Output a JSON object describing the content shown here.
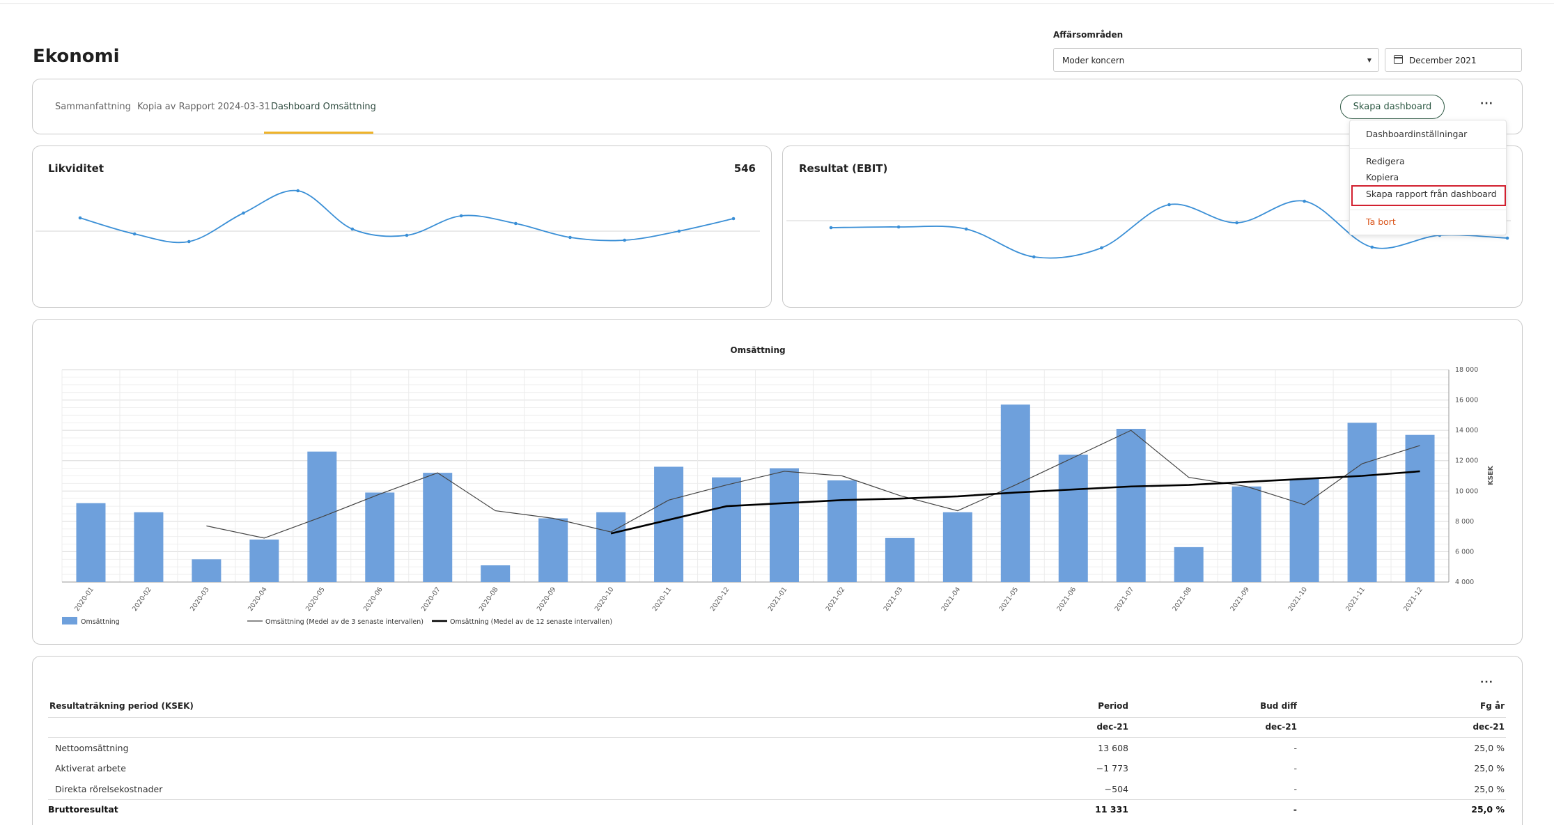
{
  "page": {
    "title": "Ekonomi"
  },
  "filters": {
    "area_label": "Affärsområden",
    "area_value": "Moder koncern",
    "date_value": "December 2021"
  },
  "tabs": [
    {
      "label": "Sammanfattning",
      "active": false
    },
    {
      "label": "Kopia av Rapport 2024-03-31",
      "active": false
    },
    {
      "label": "Dashboard Omsättning",
      "active": true
    }
  ],
  "toolbar": {
    "create_label": "Skapa dashboard",
    "more_label": "···"
  },
  "menu": {
    "items": [
      {
        "label": "Dashboardinställningar"
      },
      {
        "label": "Redigera"
      },
      {
        "label": "Kopiera"
      },
      {
        "label": "Skapa rapport från dashboard"
      },
      {
        "label": "Ta bort"
      }
    ],
    "danger_color": "#d9541a",
    "highlight_color": "#d2202f"
  },
  "kpi_cards": [
    {
      "title": "Likviditet",
      "value": "546"
    },
    {
      "title": "Resultat (EBIT)",
      "value": ""
    }
  ],
  "colors": {
    "accent_underline": "#f0b429",
    "bar": "#6ea0dc",
    "sparkline": "#3a8fd6",
    "brand_green": "#2f5a45"
  },
  "chart_data": [
    {
      "type": "line",
      "title": "Likviditet",
      "values": [
        65,
        42,
        31,
        72,
        104,
        49,
        40,
        68,
        57,
        37,
        33,
        46,
        64
      ],
      "baseline": 55
    },
    {
      "type": "line",
      "title": "Resultat (EBIT)",
      "values": [
        51,
        52,
        49,
        9,
        22,
        84,
        58,
        89,
        23,
        40,
        36
      ],
      "baseline": 50
    },
    {
      "type": "bar",
      "title": "Omsättning",
      "categories": [
        "2020-01",
        "2020-02",
        "2020-03",
        "2020-04",
        "2020-05",
        "2020-06",
        "2020-07",
        "2020-08",
        "2020-09",
        "2020-10",
        "2020-11",
        "2020-12",
        "2021-01",
        "2021-02",
        "2021-03",
        "2021-04",
        "2021-05",
        "2021-06",
        "2021-07",
        "2021-08",
        "2021-09",
        "2021-10",
        "2021-11",
        "2021-12"
      ],
      "ylabel": "KSEK",
      "ylim": [
        4000,
        18000
      ],
      "yticks": [
        "4 000",
        "6 000",
        "8 000",
        "10 000",
        "12 000",
        "14 000",
        "16 000",
        "18 000"
      ],
      "grid": true,
      "legend": "bottom-left",
      "series": [
        {
          "name": "Omsättning",
          "kind": "bar",
          "values": [
            9200,
            8600,
            5500,
            6800,
            12600,
            9900,
            11200,
            5100,
            8200,
            8600,
            11600,
            10900,
            11500,
            10700,
            6900,
            8600,
            15700,
            12400,
            14100,
            6300,
            10300,
            10800,
            14500,
            13700
          ]
        },
        {
          "name": "Omsättning (Medel av de 3 senaste intervallen)",
          "kind": "line",
          "values": [
            null,
            null,
            7700,
            6900,
            8300,
            9800,
            11200,
            8700,
            8200,
            7300,
            9400,
            10400,
            11300,
            11000,
            9700,
            8700,
            10400,
            12200,
            14000,
            10900,
            10300,
            9100,
            11800,
            13000
          ]
        },
        {
          "name": "Omsättning (Medel av de 12 senaste intervallen)",
          "kind": "line",
          "values": [
            null,
            null,
            null,
            null,
            null,
            null,
            null,
            null,
            null,
            7200,
            8100,
            9000,
            9200,
            9400,
            9500,
            9650,
            9900,
            10100,
            10300,
            10400,
            10600,
            10800,
            11000,
            11300
          ]
        }
      ]
    }
  ],
  "table": {
    "more_label": "···",
    "header": {
      "label": "Resultaträkning period (KSEK)",
      "period": "Period",
      "bud_diff": "Bud diff",
      "fg_ar": "Fg år"
    },
    "subheader": {
      "period": "dec-21",
      "bud_diff": "dec-21",
      "fg_ar": "dec-21"
    },
    "rows": [
      {
        "label": "Nettoomsättning",
        "period": "13 608",
        "bud_diff": "-",
        "fg_ar": "25,0 %",
        "bold": false
      },
      {
        "label": "Aktiverat arbete",
        "period": "−1 773",
        "bud_diff": "-",
        "fg_ar": "25,0 %",
        "bold": false
      },
      {
        "label": "Direkta rörelsekostnader",
        "period": "−504",
        "bud_diff": "-",
        "fg_ar": "25,0 %",
        "bold": false
      },
      {
        "label": "Bruttoresultat",
        "period": "11 331",
        "bud_diff": "-",
        "fg_ar": "25,0 %",
        "bold": true
      }
    ]
  }
}
